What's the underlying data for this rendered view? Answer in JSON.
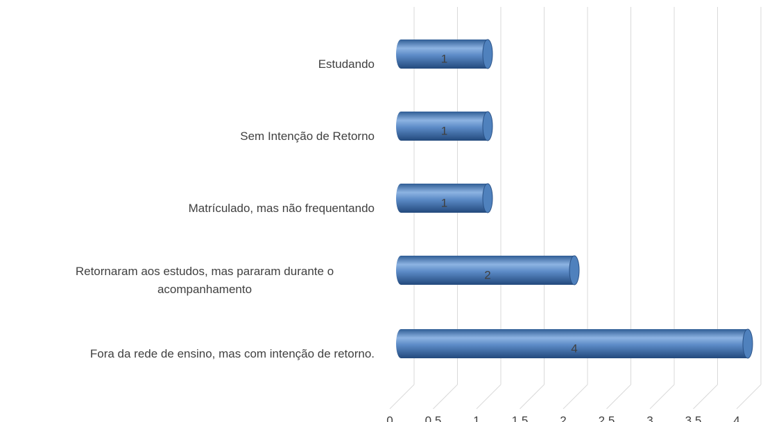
{
  "chart_data": {
    "type": "bar",
    "orientation": "horizontal",
    "style": "3d-cylinder",
    "categories": [
      "Estudando",
      "Sem Intenção de Retorno",
      "Matrículado, mas não frequentando",
      "Retornaram aos estudos, mas pararam durante o acompanhamento",
      "Fora da rede de ensino, mas com intenção de retorno."
    ],
    "values": [
      1,
      1,
      1,
      2,
      4
    ],
    "color": "#4f81bd",
    "xlim": [
      0,
      4
    ],
    "xticks": [
      0,
      {
        "value": 0.5,
        "label": "0,5"
      },
      1,
      {
        "value": 1.5,
        "label": "1,5"
      },
      2,
      {
        "value": 2.5,
        "label": "2,5"
      },
      3,
      {
        "value": 3.5,
        "label": "3,5"
      },
      4
    ],
    "grid": true
  }
}
